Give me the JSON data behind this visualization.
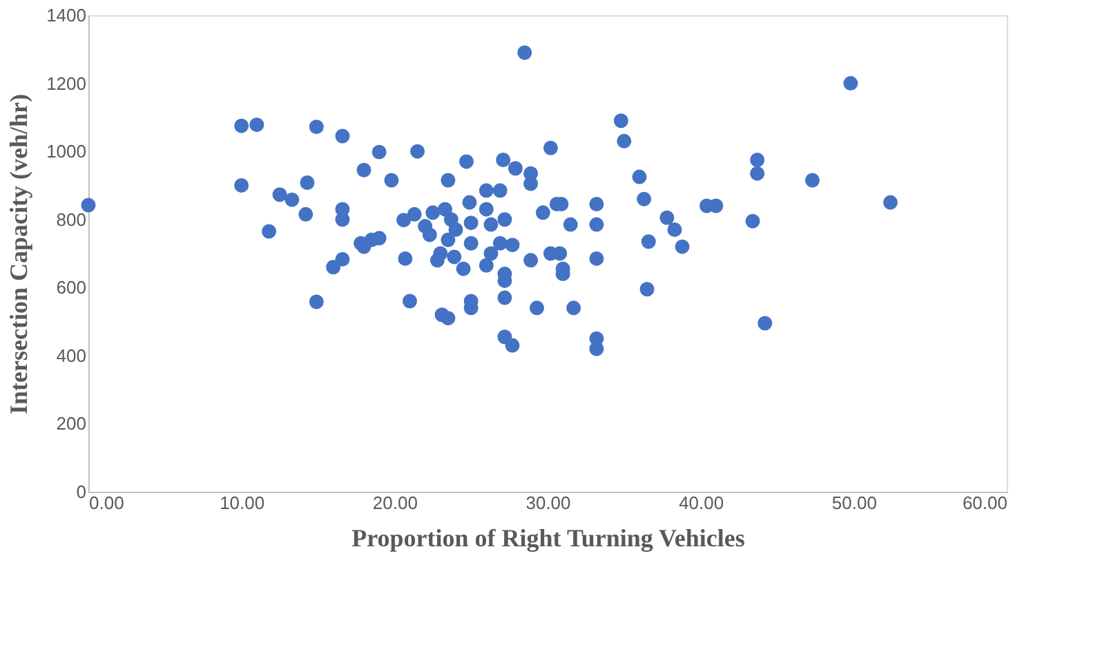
{
  "chart_data": {
    "type": "scatter",
    "xlabel": "Proportion of Right Turning Vehicles",
    "ylabel": "Intersection Capacity (veh/hr)",
    "x": [
      0.0,
      10.0,
      11.0,
      10.0,
      14.9,
      16.6,
      12.5,
      13.3,
      14.3,
      11.8,
      14.2,
      16.6,
      16.6,
      14.9,
      16.0,
      16.6,
      18.0,
      18.0,
      18.5,
      17.8,
      19.0,
      19.0,
      19.8,
      20.6,
      20.7,
      21.0,
      21.5,
      21.3,
      22.0,
      22.3,
      22.5,
      22.8,
      23.0,
      23.1,
      23.5,
      23.5,
      23.3,
      23.7,
      23.5,
      23.9,
      24.0,
      24.5,
      24.7,
      24.9,
      25.0,
      25.0,
      25.0,
      25.0,
      26.0,
      26.0,
      26.0,
      26.3,
      26.3,
      26.9,
      26.9,
      27.1,
      27.2,
      27.2,
      27.2,
      27.2,
      27.2,
      27.7,
      27.9,
      27.7,
      28.5,
      28.9,
      28.9,
      28.9,
      29.3,
      29.7,
      30.2,
      30.2,
      30.6,
      30.9,
      30.8,
      31.0,
      31.0,
      31.5,
      31.7,
      33.2,
      33.2,
      33.2,
      33.2,
      33.2,
      34.8,
      35.0,
      36.0,
      36.3,
      36.5,
      36.6,
      37.8,
      38.3,
      38.8,
      40.4,
      41.0,
      43.4,
      43.7,
      43.7,
      44.2,
      47.3,
      49.8,
      52.4
    ],
    "series": [
      {
        "color": "#4472c4",
        "values": [
          842,
          1075,
          1078,
          900,
          1072,
          1045,
          873,
          858,
          908,
          765,
          815,
          830,
          800,
          558,
          660,
          683,
          945,
          720,
          740,
          730,
          998,
          745,
          915,
          798,
          685,
          560,
          1000,
          815,
          780,
          755,
          820,
          680,
          700,
          520,
          510,
          915,
          830,
          800,
          740,
          690,
          770,
          655,
          970,
          850,
          560,
          540,
          790,
          730,
          885,
          830,
          665,
          785,
          700,
          885,
          730,
          975,
          800,
          640,
          620,
          570,
          455,
          430,
          950,
          725,
          1290,
          935,
          905,
          680,
          540,
          820,
          1010,
          700,
          845,
          845,
          700,
          655,
          640,
          785,
          540,
          845,
          785,
          685,
          450,
          420,
          1090,
          1030,
          925,
          860,
          595,
          735,
          805,
          770,
          720,
          840,
          840,
          795,
          975,
          935,
          495,
          915,
          1200,
          850
        ]
      }
    ],
    "xlim": [
      0,
      60
    ],
    "xticks": [
      {
        "value": 0,
        "label": "0.00"
      },
      {
        "value": 10,
        "label": "10.00"
      },
      {
        "value": 20,
        "label": "20.00"
      },
      {
        "value": 30,
        "label": "30.00"
      },
      {
        "value": 40,
        "label": "40.00"
      },
      {
        "value": 50,
        "label": "50.00"
      },
      {
        "value": 60,
        "label": "60.00"
      }
    ],
    "ylim": [
      0,
      1400
    ],
    "yticks": [
      0,
      200,
      400,
      600,
      800,
      1000,
      1200,
      1400
    ],
    "grid": false,
    "marker": "circle"
  }
}
